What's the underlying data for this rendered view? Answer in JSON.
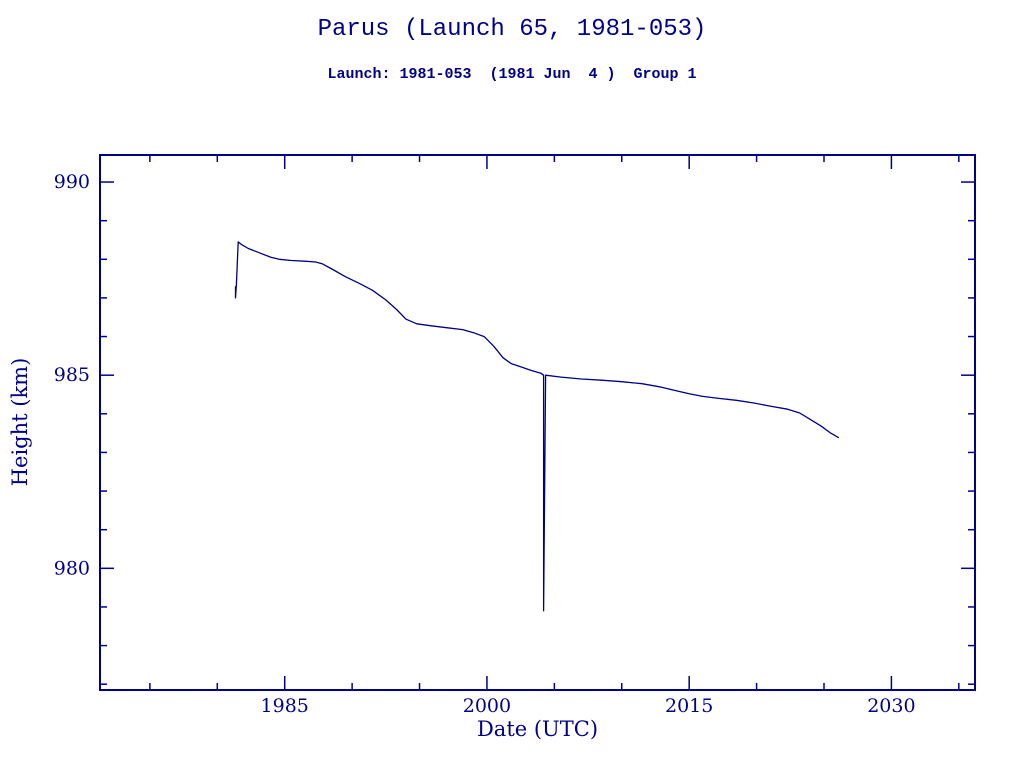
{
  "page": {
    "background": "#ffffff",
    "accent": "#000088"
  },
  "header": {
    "title": "Parus (Launch 65, 1981-053)",
    "subtitle": "Launch: 1981-053  (1981 Jun  4 )  Group 1"
  },
  "chart_data": {
    "type": "line",
    "title": "Parus (Launch 65, 1981-053)",
    "subtitle": "Launch: 1981-053  (1981 Jun  4 )  Group 1",
    "xlabel": "Date (UTC)",
    "ylabel": "Height (km)",
    "xlim": [
      1971.3,
      2036.2
    ],
    "ylim": [
      976.85,
      990.7
    ],
    "xticks": [
      1985,
      2000,
      2015,
      2030
    ],
    "yticks": [
      980,
      985,
      990
    ],
    "x_minor_step": 5,
    "y_minor_step": 1,
    "grid": false,
    "legend": "none",
    "line_color": "#000088",
    "series": [
      {
        "name": "orbital-height-km",
        "points": [
          [
            1981.35,
            987.3
          ],
          [
            1981.35,
            987.0
          ],
          [
            1981.42,
            987.35
          ],
          [
            1981.55,
            988.45
          ],
          [
            1981.8,
            988.38
          ],
          [
            1982.3,
            988.28
          ],
          [
            1983.1,
            988.17
          ],
          [
            1984.0,
            988.05
          ],
          [
            1984.6,
            988.0
          ],
          [
            1985.5,
            987.97
          ],
          [
            1986.5,
            987.95
          ],
          [
            1987.3,
            987.93
          ],
          [
            1987.8,
            987.88
          ],
          [
            1988.5,
            987.75
          ],
          [
            1989.5,
            987.55
          ],
          [
            1990.5,
            987.38
          ],
          [
            1991.5,
            987.2
          ],
          [
            1992.5,
            986.95
          ],
          [
            1993.3,
            986.7
          ],
          [
            1994.0,
            986.45
          ],
          [
            1994.8,
            986.33
          ],
          [
            1995.8,
            986.28
          ],
          [
            1997.0,
            986.23
          ],
          [
            1998.2,
            986.18
          ],
          [
            1999.0,
            986.1
          ],
          [
            1999.8,
            986.0
          ],
          [
            2000.5,
            985.75
          ],
          [
            2001.2,
            985.45
          ],
          [
            2001.8,
            985.3
          ],
          [
            2002.5,
            985.22
          ],
          [
            2003.3,
            985.12
          ],
          [
            2004.0,
            985.05
          ],
          [
            2004.2,
            985.0
          ],
          [
            2004.2,
            978.9
          ],
          [
            2004.35,
            985.0
          ],
          [
            2005.5,
            984.95
          ],
          [
            2007.0,
            984.9
          ],
          [
            2008.5,
            984.87
          ],
          [
            2010.0,
            984.83
          ],
          [
            2011.5,
            984.78
          ],
          [
            2012.8,
            984.7
          ],
          [
            2014.0,
            984.6
          ],
          [
            2015.0,
            984.52
          ],
          [
            2016.0,
            984.45
          ],
          [
            2017.2,
            984.4
          ],
          [
            2018.5,
            984.35
          ],
          [
            2019.8,
            984.28
          ],
          [
            2021.0,
            984.2
          ],
          [
            2022.3,
            984.12
          ],
          [
            2023.2,
            984.02
          ],
          [
            2024.0,
            983.85
          ],
          [
            2024.8,
            983.68
          ],
          [
            2025.5,
            983.5
          ],
          [
            2026.1,
            983.38
          ]
        ]
      }
    ]
  }
}
